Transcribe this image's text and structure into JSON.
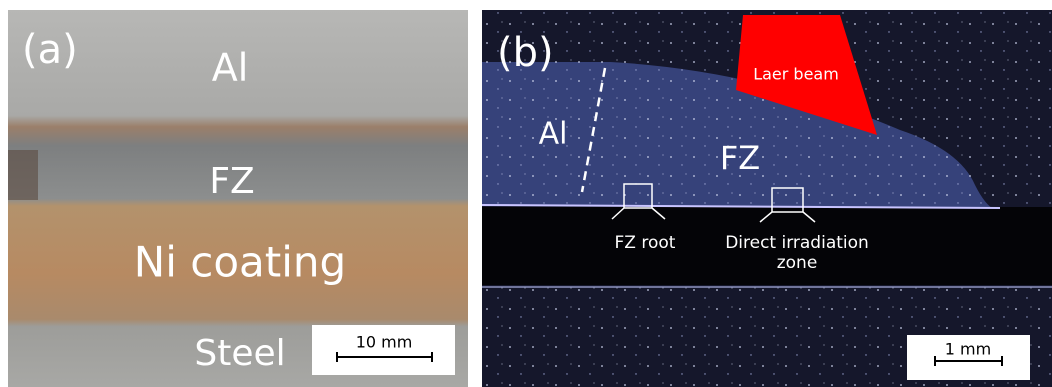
{
  "panel_a": {
    "tag": "(a)",
    "labels": [
      "Al",
      "FZ",
      "Ni coating",
      "Steel"
    ],
    "scale_bar": "10 mm"
  },
  "panel_b": {
    "tag": "(b)",
    "beam": "Laer beam",
    "labels": [
      "Al",
      "FZ"
    ],
    "fz_root": "FZ root",
    "direct_zone": [
      "Direct irradiation",
      "zone"
    ],
    "scale_bar": "1 mm"
  }
}
